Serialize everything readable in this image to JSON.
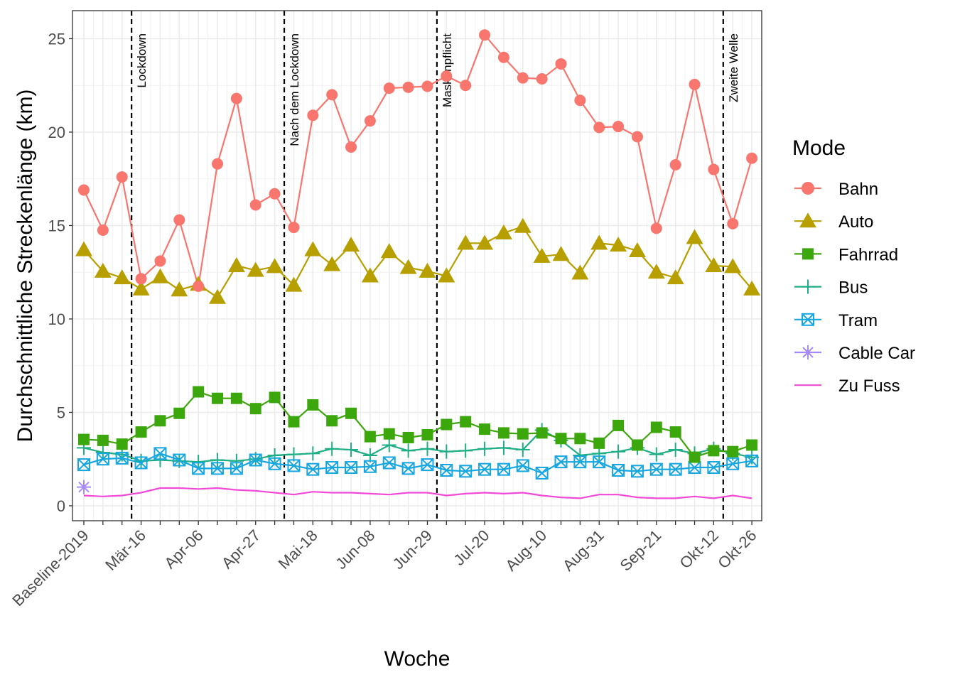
{
  "chart_data": {
    "type": "line",
    "xlabel": "Woche",
    "ylabel": "Durchschnittliche Streckenlänge (km)",
    "ylim": [
      -0.8,
      26.5
    ],
    "yticks": [
      0,
      5,
      10,
      15,
      20,
      25
    ],
    "grid": true,
    "legend_title": "Mode",
    "legend_position": "right",
    "x": [
      "Baseline-2019",
      "Mär-02",
      "Mär-09",
      "Mär-16",
      "Mär-23",
      "Mär-30",
      "Apr-06",
      "Apr-13",
      "Apr-20",
      "Apr-27",
      "Mai-04",
      "Mai-11",
      "Mai-18",
      "Mai-25",
      "Jun-01",
      "Jun-08",
      "Jun-15",
      "Jun-22",
      "Jun-29",
      "Jul-06",
      "Jul-13",
      "Jul-20",
      "Jul-27",
      "Aug-03",
      "Aug-10",
      "Aug-17",
      "Aug-24",
      "Aug-31",
      "Sep-07",
      "Sep-14",
      "Sep-21",
      "Sep-28",
      "Okt-05",
      "Okt-12",
      "Okt-19",
      "Okt-26"
    ],
    "x_tick_labels": [
      "Baseline-2019",
      "Mär-16",
      "Apr-06",
      "Apr-27",
      "Mai-18",
      "Jun-08",
      "Jun-29",
      "Jul-20",
      "Aug-10",
      "Aug-31",
      "Sep-21",
      "Okt-12",
      "Okt-26"
    ],
    "events": [
      {
        "label": "Lockdown",
        "x_after": "Mär-09"
      },
      {
        "label": "Nach dem Lockdown",
        "x_after": "Mai-04"
      },
      {
        "label": "Maskenpflicht",
        "x_after": "Jun-29"
      },
      {
        "label": "Zweite Welle",
        "x_after": "Okt-12"
      }
    ],
    "series": [
      {
        "name": "Bahn",
        "color": "#F8766D",
        "marker": "circle",
        "values": [
          16.9,
          14.75,
          17.6,
          12.15,
          13.1,
          15.3,
          11.75,
          18.3,
          21.8,
          16.1,
          16.7,
          14.9,
          20.9,
          22.0,
          19.2,
          20.6,
          22.35,
          22.4,
          22.45,
          23.0,
          22.5,
          25.2,
          24.0,
          22.9,
          22.85,
          23.65,
          21.7,
          20.25,
          20.3,
          19.75,
          14.85,
          18.25,
          22.55,
          18.0,
          15.1,
          18.6
        ]
      },
      {
        "name": "Auto",
        "color": "#B79F00",
        "marker": "triangle",
        "values": [
          13.7,
          12.55,
          12.2,
          11.6,
          12.25,
          11.55,
          11.85,
          11.15,
          12.85,
          12.6,
          12.8,
          11.8,
          13.7,
          12.9,
          13.95,
          12.3,
          13.6,
          12.75,
          12.55,
          12.3,
          14.05,
          14.05,
          14.6,
          14.95,
          13.35,
          13.45,
          12.45,
          14.05,
          13.95,
          13.65,
          12.5,
          12.2,
          14.35,
          12.85,
          12.8,
          11.6
        ]
      },
      {
        "name": "Fahrrad",
        "color": "#00BA38",
        "stroke": "#3CA70D",
        "marker": "square",
        "values": [
          3.55,
          3.5,
          3.3,
          3.95,
          4.55,
          4.95,
          6.1,
          5.75,
          5.75,
          5.2,
          5.8,
          4.5,
          5.4,
          4.55,
          4.95,
          3.7,
          3.85,
          3.65,
          3.8,
          4.35,
          4.5,
          4.1,
          3.9,
          3.85,
          3.9,
          3.6,
          3.6,
          3.35,
          4.3,
          3.25,
          4.2,
          3.95,
          2.6,
          2.95,
          2.9,
          3.25
        ]
      },
      {
        "name": "Bus",
        "color": "#1FAE85",
        "marker": "plus",
        "values": [
          3.1,
          2.85,
          2.75,
          2.4,
          2.45,
          2.4,
          2.35,
          2.45,
          2.4,
          2.5,
          2.7,
          2.75,
          2.8,
          3.05,
          3.0,
          2.7,
          3.25,
          2.95,
          3.05,
          2.9,
          2.95,
          3.05,
          3.1,
          3.0,
          4.05,
          3.5,
          2.7,
          2.8,
          2.9,
          3.1,
          2.75,
          3.0,
          2.8,
          3.05,
          2.8,
          2.6
        ]
      },
      {
        "name": "Tram",
        "color": "#16A6E0",
        "marker": "square-x",
        "values": [
          2.2,
          2.5,
          2.55,
          2.3,
          2.8,
          2.45,
          2.0,
          2.0,
          2.0,
          2.45,
          2.25,
          2.15,
          1.95,
          2.05,
          2.05,
          2.1,
          2.3,
          2.0,
          2.2,
          1.9,
          1.85,
          1.95,
          1.95,
          2.15,
          1.75,
          2.35,
          2.35,
          2.35,
          1.9,
          1.85,
          1.95,
          1.95,
          2.05,
          2.05,
          2.25,
          2.4
        ]
      },
      {
        "name": "Cable Car",
        "color": "#A58AFF",
        "marker": "star",
        "values": [
          1.0,
          null,
          null,
          null,
          null,
          null,
          null,
          null,
          null,
          null,
          null,
          null,
          null,
          null,
          null,
          null,
          null,
          null,
          null,
          null,
          null,
          null,
          null,
          null,
          null,
          null,
          null,
          null,
          null,
          null,
          null,
          null,
          null,
          null,
          null,
          null
        ]
      },
      {
        "name": "Zu Fuss",
        "color": "#F24AD8",
        "marker": "none",
        "values": [
          0.55,
          0.5,
          0.55,
          0.7,
          0.95,
          0.95,
          0.9,
          0.95,
          0.85,
          0.8,
          0.7,
          0.6,
          0.75,
          0.7,
          0.7,
          0.65,
          0.6,
          0.7,
          0.7,
          0.55,
          0.65,
          0.7,
          0.65,
          0.7,
          0.55,
          0.45,
          0.4,
          0.6,
          0.6,
          0.45,
          0.4,
          0.4,
          0.5,
          0.4,
          0.55,
          0.4
        ]
      }
    ]
  }
}
